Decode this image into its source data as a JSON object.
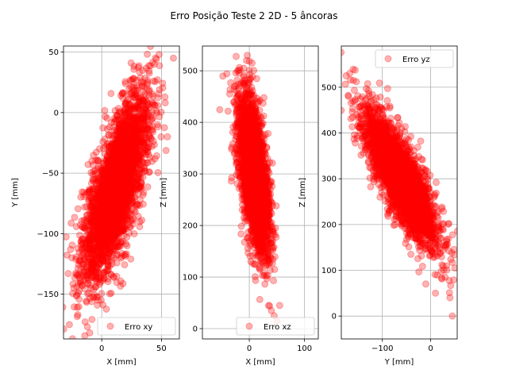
{
  "figure": {
    "suptitle": "Erro Posição Teste 2 2D - 5 âncoras"
  },
  "style": {
    "point_color": "#ff0000",
    "point_alpha": 0.3,
    "grid_color": "#b0b0b0"
  },
  "chart_data": [
    {
      "type": "scatter",
      "panel": "xy",
      "xlabel": "X [mm]",
      "ylabel": "Y [mm]",
      "xlim": [
        -32,
        65
      ],
      "ylim": [
        -187,
        55
      ],
      "xticks": [
        0,
        50
      ],
      "xtick_labels": [
        "0",
        "50"
      ],
      "yticks": [
        50,
        0,
        -50,
        -100,
        -150
      ],
      "ytick_labels": [
        "50",
        "0",
        "−50",
        "−100",
        "−150"
      ],
      "grid": true,
      "legend": {
        "label": "Erro xy",
        "position": "lower-right"
      },
      "series": [
        {
          "name": "Erro xy",
          "distribution": {
            "x_center": 12,
            "x_sd": 14,
            "y_center": -62,
            "y_sd": 38,
            "correlation": 0.72,
            "n": 3000
          },
          "outliers": [
            [
              48,
              48
            ],
            [
              60,
              45
            ],
            [
              44,
              40
            ],
            [
              -12,
              -177
            ],
            [
              -10,
              -182
            ],
            [
              -20,
              -167
            ],
            [
              55,
              -20
            ],
            [
              -28,
              -133
            ]
          ]
        }
      ]
    },
    {
      "type": "scatter",
      "panel": "xz",
      "xlabel": "X [mm]",
      "ylabel": "Z [mm]",
      "xlim": [
        -85,
        125
      ],
      "ylim": [
        -20,
        548
      ],
      "xticks": [
        0,
        100
      ],
      "xtick_labels": [
        "0",
        "100"
      ],
      "yticks": [
        0,
        100,
        200,
        300,
        400,
        500
      ],
      "ytick_labels": [
        "0",
        "100",
        "200",
        "300",
        "400",
        "500"
      ],
      "grid": true,
      "legend": {
        "label": "Erro xz",
        "position": "lower-right"
      },
      "series": [
        {
          "name": "Erro xz",
          "distribution": {
            "x_center": 8,
            "x_sd": 14,
            "y_center": 300,
            "y_sd": 75,
            "correlation": -0.55,
            "n": 3000
          },
          "outliers": [
            [
              -5,
              520
            ],
            [
              5,
              515
            ],
            [
              -10,
              505
            ],
            [
              35,
              45
            ],
            [
              55,
              45
            ],
            [
              45,
              25
            ],
            [
              50,
              15
            ],
            [
              40,
              35
            ]
          ]
        }
      ]
    },
    {
      "type": "scatter",
      "panel": "yz",
      "xlabel": "Y [mm]",
      "ylabel": "Z [mm]",
      "xlim": [
        -185,
        55
      ],
      "ylim": [
        -50,
        590
      ],
      "xticks": [
        -100,
        0
      ],
      "xtick_labels": [
        "−100",
        "0"
      ],
      "yticks": [
        0,
        100,
        200,
        300,
        400,
        500
      ],
      "ytick_labels": [
        "0",
        "100",
        "200",
        "300",
        "400",
        "500"
      ],
      "grid": true,
      "legend": {
        "label": "Erro yz",
        "position": "upper-right"
      },
      "series": [
        {
          "name": "Erro yz",
          "distribution": {
            "x_center": -62,
            "x_sd": 38,
            "y_center": 300,
            "y_sd": 75,
            "correlation": -0.82,
            "n": 3000
          },
          "outliers": [
            [
              -175,
              525
            ],
            [
              -160,
              515
            ],
            [
              -170,
              480
            ],
            [
              45,
              0
            ],
            [
              40,
              40
            ],
            [
              30,
              85
            ],
            [
              -10,
              70
            ],
            [
              10,
              50
            ]
          ]
        }
      ]
    }
  ]
}
